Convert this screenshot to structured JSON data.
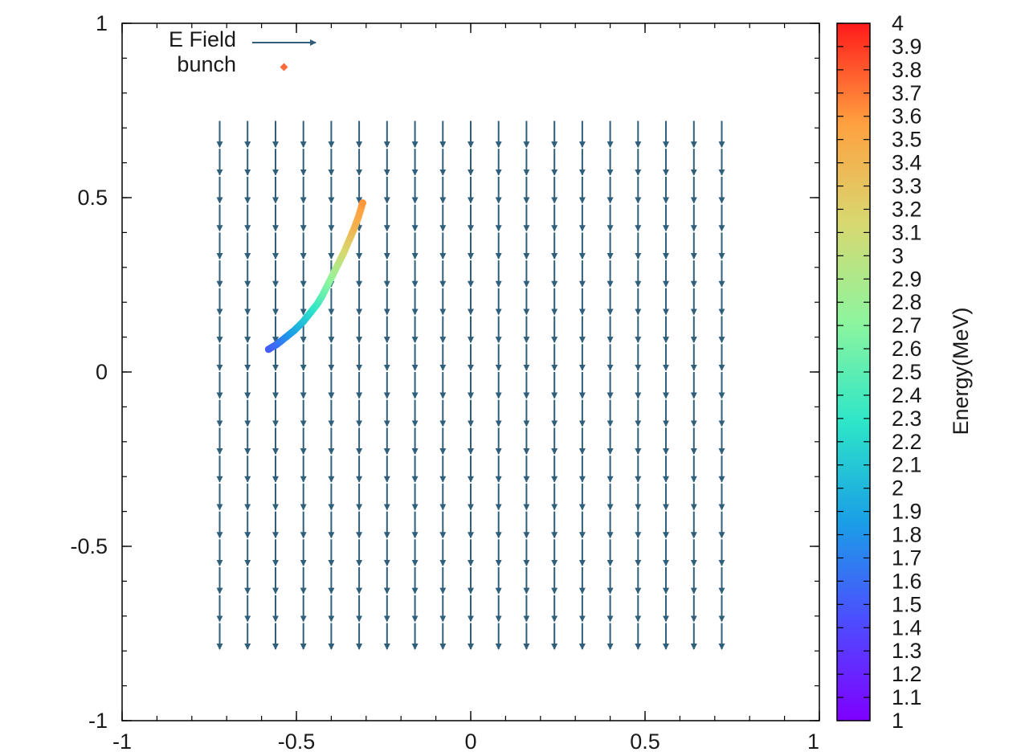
{
  "chart_data": {
    "type": "scatter",
    "title": "",
    "xlabel": "",
    "ylabel": "",
    "xlim": [
      -1,
      1
    ],
    "ylim": [
      -1,
      1
    ],
    "x_ticks": [
      "-1",
      "-0.5",
      "0",
      "0.5",
      "1"
    ],
    "y_ticks": [
      "1",
      "0.5",
      "0",
      "-0.5",
      "-1"
    ],
    "x_tick_values": [
      -1,
      -0.5,
      0,
      0.5,
      1
    ],
    "y_tick_values": [
      1,
      0.5,
      0,
      -0.5,
      -1
    ],
    "minor_tick_step": 0.1,
    "grid": false,
    "legend_position": "top-left",
    "legend": [
      {
        "label": "E Field",
        "marker": "arrow"
      },
      {
        "label": "bunch",
        "marker": "point"
      }
    ],
    "e_field": {
      "name": "E Field",
      "color": "#2f5f7a",
      "x_values": [
        -0.72,
        -0.64,
        -0.56,
        -0.48,
        -0.4,
        -0.32,
        -0.24,
        -0.16,
        -0.08,
        0.0,
        0.08,
        0.16,
        0.24,
        0.32,
        0.4,
        0.48,
        0.56,
        0.64,
        0.72
      ],
      "y_values": [
        0.72,
        0.64,
        0.56,
        0.48,
        0.4,
        0.32,
        0.24,
        0.16,
        0.08,
        0.0,
        -0.08,
        -0.16,
        -0.24,
        -0.32,
        -0.4,
        -0.48,
        -0.56,
        -0.64,
        -0.72
      ],
      "dx": 0,
      "dy": -0.075,
      "direction": "down"
    },
    "bunch": {
      "name": "bunch",
      "color": "#ff6a3a",
      "x": [
        -0.58,
        -0.555,
        -0.53,
        -0.505,
        -0.48,
        -0.46,
        -0.44,
        -0.425,
        -0.41,
        -0.395,
        -0.38,
        -0.365,
        -0.35,
        -0.335,
        -0.322,
        -0.31
      ],
      "y": [
        0.065,
        0.08,
        0.1,
        0.12,
        0.145,
        0.17,
        0.195,
        0.22,
        0.25,
        0.28,
        0.31,
        0.34,
        0.375,
        0.41,
        0.445,
        0.485
      ],
      "energy": [
        1.5,
        1.6,
        1.75,
        1.9,
        2.05,
        2.2,
        2.35,
        2.5,
        2.65,
        2.8,
        2.95,
        3.1,
        3.25,
        3.4,
        3.5,
        3.6
      ]
    },
    "colorbar": {
      "label": "Energy(MeV)",
      "range": [
        1,
        4
      ],
      "tick_labels": [
        "4",
        "3.9",
        "3.8",
        "3.7",
        "3.6",
        "3.5",
        "3.4",
        "3.3",
        "3.2",
        "3.1",
        "3",
        "2.9",
        "2.8",
        "2.7",
        "2.6",
        "2.5",
        "2.4",
        "2.3",
        "2.2",
        "2.1",
        "2",
        "1.9",
        "1.8",
        "1.7",
        "1.6",
        "1.5",
        "1.4",
        "1.3",
        "1.2",
        "1.1",
        "1"
      ],
      "tick_values": [
        4,
        3.9,
        3.8,
        3.7,
        3.6,
        3.5,
        3.4,
        3.3,
        3.2,
        3.1,
        3,
        2.9,
        2.8,
        2.7,
        2.6,
        2.5,
        2.4,
        2.3,
        2.2,
        2.1,
        2,
        1.9,
        1.8,
        1.7,
        1.6,
        1.5,
        1.4,
        1.3,
        1.2,
        1.1,
        1
      ],
      "palette": "rainbow",
      "colors": [
        "#7f00ff",
        "#4d4dff",
        "#1a9fe6",
        "#2ee6c8",
        "#8cf59e",
        "#d8d870",
        "#ffa040",
        "#ff1a1a"
      ]
    }
  }
}
